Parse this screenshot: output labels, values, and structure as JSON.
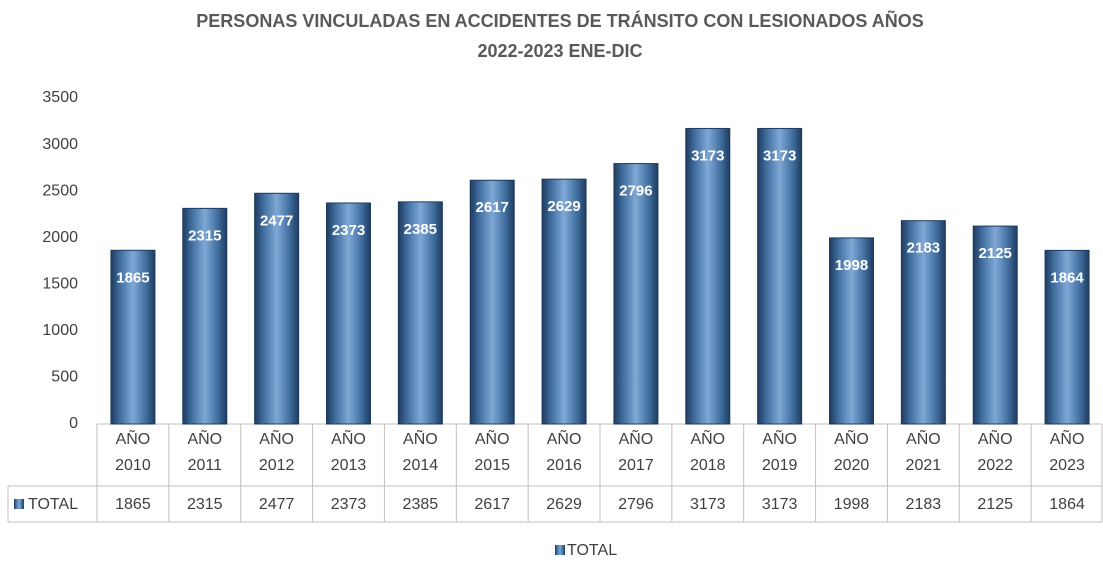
{
  "chart_data": {
    "type": "bar",
    "title": [
      "PERSONAS VINCULADAS EN ACCIDENTES DE TRÁNSITO  CON  LESIONADOS  AÑOS",
      "2022-2023 ENE-DIC"
    ],
    "categories": [
      "AÑO 2010",
      "AÑO 2011",
      "AÑO 2012",
      "AÑO 2013",
      "AÑO 2014",
      "AÑO 2015",
      "AÑO 2016",
      "AÑO 2017",
      "AÑO 2018",
      "AÑO 2019",
      "AÑO 2020",
      "AÑO 2021",
      "AÑO 2022",
      "AÑO 2023"
    ],
    "series": [
      {
        "name": "TOTAL",
        "color": "#4f81bd",
        "values": [
          1865,
          2315,
          2477,
          2373,
          2385,
          2617,
          2629,
          2796,
          3173,
          3173,
          1998,
          2183,
          2125,
          1864
        ]
      }
    ],
    "ylim": [
      0,
      3500
    ],
    "yticks": [
      0,
      500,
      1000,
      1500,
      2000,
      2500,
      3000,
      3500
    ],
    "grid": false,
    "legend": "bottom"
  }
}
